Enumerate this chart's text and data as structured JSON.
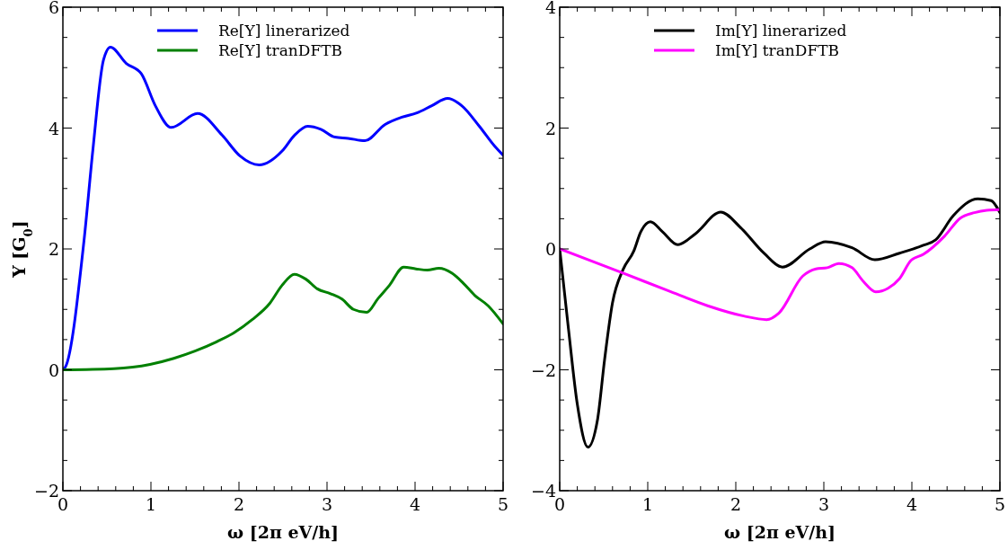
{
  "chart_data": [
    {
      "type": "line",
      "xlabel": "ω [2π eV/h]",
      "ylabel": "Y [G$_{0}$]",
      "xlim": [
        0,
        5
      ],
      "ylim": [
        -2,
        6
      ],
      "legend": "top",
      "line_style": "solid",
      "xticks": [
        0,
        {
          "value": 0.2,
          "label": null
        },
        {
          "value": 0.4,
          "label": null
        },
        {
          "value": 0.6,
          "label": null
        },
        {
          "value": 0.8,
          "label": null
        },
        1,
        {
          "value": 1.2,
          "label": null
        },
        {
          "value": 1.4,
          "label": null
        },
        {
          "value": 1.6,
          "label": null
        },
        {
          "value": 1.8,
          "label": null
        },
        2,
        {
          "value": 2.2,
          "label": null
        },
        {
          "value": 2.4,
          "label": null
        },
        {
          "value": 2.6,
          "label": null
        },
        {
          "value": 2.8,
          "label": null
        },
        3,
        {
          "value": 3.2,
          "label": null
        },
        {
          "value": 3.4,
          "label": null
        },
        {
          "value": 3.6,
          "label": null
        },
        {
          "value": 3.8,
          "label": null
        },
        4,
        {
          "value": 4.2,
          "label": null
        },
        {
          "value": 4.4,
          "label": null
        },
        {
          "value": 4.6,
          "label": null
        },
        {
          "value": 4.8,
          "label": null
        },
        5
      ],
      "yticks": [
        -2,
        {
          "value": -1.5,
          "label": null
        },
        {
          "value": -1,
          "label": null
        },
        {
          "value": -0.5,
          "label": null
        },
        0,
        {
          "value": 0.5,
          "label": null
        },
        {
          "value": 1,
          "label": null
        },
        {
          "value": 1.5,
          "label": null
        },
        2,
        {
          "value": 2.5,
          "label": null
        },
        {
          "value": 3,
          "label": null
        },
        {
          "value": 3.5,
          "label": null
        },
        4,
        {
          "value": 4.5,
          "label": null
        },
        {
          "value": 5,
          "label": null
        },
        {
          "value": 5.5,
          "label": null
        },
        6
      ],
      "series": [
        {
          "name": "Re[Y] linerarized",
          "color": "#0000ff",
          "x": [
            0,
            0.03,
            0.24,
            0.34,
            0.46,
            0.54,
            0.72,
            0.89,
            1.05,
            1.23,
            1.53,
            1.81,
            2.01,
            2.23,
            2.49,
            2.63,
            2.78,
            2.93,
            3.09,
            3.24,
            3.43,
            3.66,
            3.85,
            4.02,
            4.19,
            4.37,
            4.53,
            4.73,
            4.91,
            5.0
          ],
          "values": [
            0,
            0.05,
            2.14,
            3.63,
            5.12,
            5.34,
            5.07,
            4.9,
            4.37,
            4.01,
            4.24,
            3.88,
            3.54,
            3.39,
            3.62,
            3.88,
            4.03,
            3.98,
            3.85,
            3.83,
            3.79,
            4.06,
            4.18,
            4.25,
            4.37,
            4.49,
            4.37,
            4.03,
            3.69,
            3.55
          ]
        },
        {
          "name": "Re[Y] tranDFTB",
          "color": "#008000",
          "x": [
            0,
            0.58,
            0.99,
            1.26,
            1.5,
            1.74,
            1.94,
            2.15,
            2.35,
            2.49,
            2.63,
            2.76,
            2.89,
            3.04,
            3.17,
            3.3,
            3.45,
            3.58,
            3.71,
            3.87,
            4.01,
            4.14,
            4.27,
            4.42,
            4.55,
            4.68,
            4.83,
            5.0
          ],
          "values": [
            0,
            0.02,
            0.09,
            0.19,
            0.31,
            0.46,
            0.61,
            0.83,
            1.1,
            1.4,
            1.58,
            1.5,
            1.34,
            1.26,
            1.17,
            1.0,
            0.95,
            1.18,
            1.4,
            1.7,
            1.67,
            1.65,
            1.68,
            1.6,
            1.43,
            1.23,
            1.06,
            0.76
          ]
        }
      ]
    },
    {
      "type": "line",
      "xlabel": "ω [2π eV/h]",
      "xlim": [
        0,
        5
      ],
      "ylim": [
        -4,
        4
      ],
      "legend": "top",
      "line_style": "solid",
      "xticks": [
        0,
        {
          "value": 0.2,
          "label": null
        },
        {
          "value": 0.4,
          "label": null
        },
        {
          "value": 0.6,
          "label": null
        },
        {
          "value": 0.8,
          "label": null
        },
        1,
        {
          "value": 1.2,
          "label": null
        },
        {
          "value": 1.4,
          "label": null
        },
        {
          "value": 1.6,
          "label": null
        },
        {
          "value": 1.8,
          "label": null
        },
        2,
        {
          "value": 2.2,
          "label": null
        },
        {
          "value": 2.4,
          "label": null
        },
        {
          "value": 2.6,
          "label": null
        },
        {
          "value": 2.8,
          "label": null
        },
        3,
        {
          "value": 3.2,
          "label": null
        },
        {
          "value": 3.4,
          "label": null
        },
        {
          "value": 3.6,
          "label": null
        },
        {
          "value": 3.8,
          "label": null
        },
        4,
        {
          "value": 4.2,
          "label": null
        },
        {
          "value": 4.4,
          "label": null
        },
        {
          "value": 4.6,
          "label": null
        },
        {
          "value": 4.8,
          "label": null
        },
        5
      ],
      "yticks": [
        -4,
        {
          "value": -3.5,
          "label": null
        },
        {
          "value": -3,
          "label": null
        },
        {
          "value": -2.5,
          "label": null
        },
        -2,
        {
          "value": -1.5,
          "label": null
        },
        {
          "value": -1,
          "label": null
        },
        {
          "value": -0.5,
          "label": null
        },
        0,
        {
          "value": 0.5,
          "label": null
        },
        {
          "value": 1,
          "label": null
        },
        {
          "value": 1.5,
          "label": null
        },
        2,
        {
          "value": 2.5,
          "label": null
        },
        {
          "value": 3,
          "label": null
        },
        {
          "value": 3.5,
          "label": null
        },
        4
      ],
      "series": [
        {
          "name": "Im[Y] linerarized",
          "color": "#000000",
          "x": [
            0,
            0.1,
            0.2,
            0.32,
            0.43,
            0.51,
            0.6,
            0.72,
            0.84,
            0.92,
            1.03,
            1.17,
            1.34,
            1.54,
            1.83,
            2.05,
            2.32,
            2.53,
            2.84,
            3.02,
            3.32,
            3.58,
            3.86,
            4.13,
            4.27,
            4.47,
            4.75,
            4.9,
            5.0
          ],
          "values": [
            0,
            -1.33,
            -2.57,
            -3.28,
            -2.82,
            -1.83,
            -0.89,
            -0.34,
            -0.04,
            0.28,
            0.45,
            0.28,
            0.07,
            0.25,
            0.61,
            0.36,
            -0.07,
            -0.3,
            0,
            0.12,
            0.02,
            -0.18,
            -0.07,
            0.06,
            0.15,
            0.55,
            0.83,
            0.8,
            0.6
          ]
        },
        {
          "name": "Im[Y] tranDFTB",
          "color": "#ff00ff",
          "x": [
            0,
            0.72,
            1.23,
            1.68,
            2.09,
            2.35,
            2.49,
            2.76,
            2.91,
            3.04,
            3.17,
            3.32,
            3.45,
            3.59,
            3.73,
            3.86,
            3.99,
            4.13,
            4.37,
            4.55,
            4.71,
            4.85,
            5.0
          ],
          "values": [
            0,
            -0.4,
            -0.69,
            -0.94,
            -1.11,
            -1.17,
            -1.06,
            -0.45,
            -0.33,
            -0.31,
            -0.24,
            -0.31,
            -0.54,
            -0.71,
            -0.65,
            -0.49,
            -0.19,
            -0.09,
            0.21,
            0.51,
            0.6,
            0.64,
            0.65
          ]
        }
      ]
    }
  ]
}
